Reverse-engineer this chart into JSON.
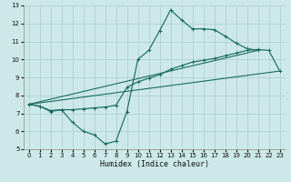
{
  "bg_color": "#cce8e8",
  "grid_color": "#aacccc",
  "line_color": "#1a6b5e",
  "xlabel": "Humidex (Indice chaleur)",
  "xlim": [
    -0.5,
    23.5
  ],
  "ylim": [
    5,
    13
  ],
  "yticks": [
    5,
    6,
    7,
    8,
    9,
    10,
    11,
    12,
    13
  ],
  "xticks": [
    0,
    1,
    2,
    3,
    4,
    5,
    6,
    7,
    8,
    9,
    10,
    11,
    12,
    13,
    14,
    15,
    16,
    17,
    18,
    19,
    20,
    21,
    22,
    23
  ],
  "line1_x": [
    0,
    1,
    2,
    3,
    4,
    5,
    6,
    7,
    8,
    9,
    10,
    11,
    12,
    13,
    14,
    15,
    16,
    17,
    18,
    19,
    20,
    21
  ],
  "line1_y": [
    7.5,
    7.4,
    7.1,
    7.2,
    6.5,
    6.0,
    5.8,
    5.3,
    5.45,
    7.1,
    10.0,
    10.5,
    11.6,
    12.75,
    12.2,
    11.7,
    11.7,
    11.65,
    11.3,
    10.9,
    10.6,
    10.5
  ],
  "line2_x": [
    0,
    1,
    2,
    3,
    4,
    5,
    6,
    7,
    8,
    9,
    10,
    11,
    12,
    13,
    14,
    15,
    16,
    17,
    18,
    19,
    20,
    21,
    22,
    23
  ],
  "line2_y": [
    7.5,
    7.4,
    7.15,
    7.2,
    7.2,
    7.25,
    7.3,
    7.35,
    7.45,
    8.45,
    8.75,
    8.95,
    9.15,
    9.45,
    9.65,
    9.85,
    9.95,
    10.05,
    10.2,
    10.35,
    10.5,
    10.55,
    10.5,
    9.35
  ],
  "line3_x": [
    0,
    23
  ],
  "line3_y": [
    7.5,
    9.35
  ],
  "line4_x": [
    0,
    21
  ],
  "line4_y": [
    7.5,
    10.5
  ]
}
